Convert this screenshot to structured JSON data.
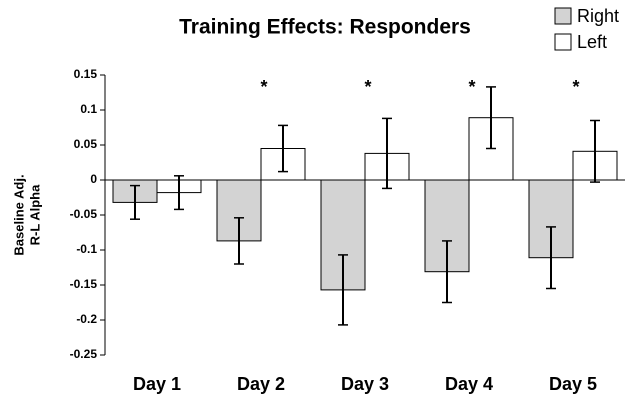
{
  "chart_data": {
    "type": "bar",
    "title": "Training Effects: Responders",
    "ylabel": [
      "Baseline Adj.",
      "R-L Alpha"
    ],
    "categories": [
      "Day 1",
      "Day 2",
      "Day 3",
      "Day 4",
      "Day 5"
    ],
    "series": [
      {
        "name": "Right",
        "color": "#d3d3d3",
        "values": [
          -0.032,
          -0.087,
          -0.157,
          -0.131,
          -0.111
        ],
        "errors": [
          0.024,
          0.033,
          0.05,
          0.044,
          0.044
        ]
      },
      {
        "name": "Left",
        "color": "#ffffff",
        "values": [
          -0.018,
          0.045,
          0.038,
          0.089,
          0.041
        ],
        "errors": [
          0.024,
          0.033,
          0.05,
          0.044,
          0.044
        ]
      }
    ],
    "ylim": [
      -0.25,
      0.15
    ],
    "yticks": [
      0.15,
      0.1,
      0.05,
      0,
      -0.05,
      -0.1,
      -0.15,
      -0.2,
      -0.25
    ],
    "annotations": [
      {
        "category": "Day 2",
        "text": "*"
      },
      {
        "category": "Day 3",
        "text": "*"
      },
      {
        "category": "Day 4",
        "text": "*"
      },
      {
        "category": "Day 5",
        "text": "*"
      }
    ],
    "legend": "top-right",
    "grid": false
  }
}
